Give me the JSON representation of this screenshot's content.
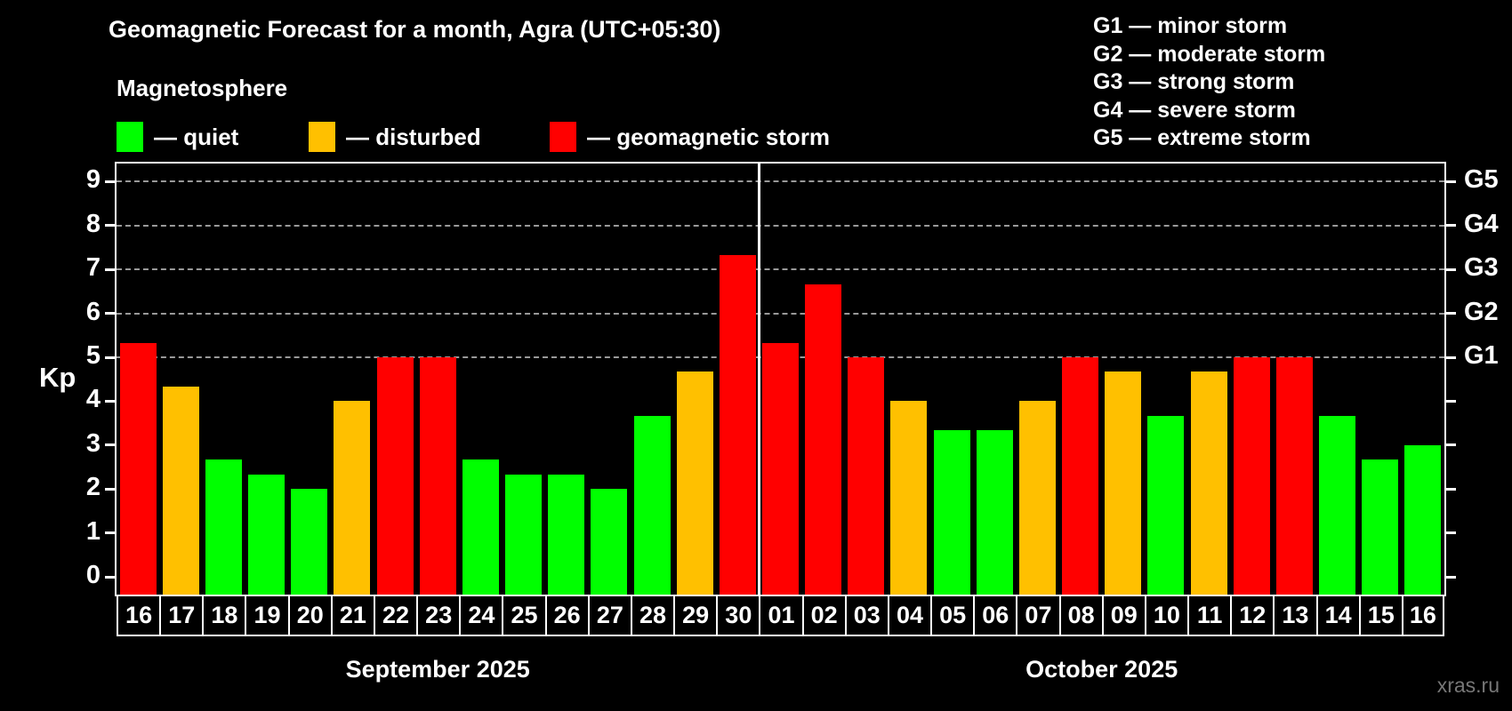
{
  "header": {
    "subtitle": "Magnetosphere"
  },
  "condition_legend": {
    "quiet": {
      "swatch_color": "#00ff00",
      "label": "— quiet"
    },
    "disturbed": {
      "swatch_color": "#ffc000",
      "label": "— disturbed"
    },
    "storm": {
      "swatch_color": "#ff0000",
      "label": "— geomagnetic storm"
    }
  },
  "storm_levels": [
    "G1 — minor storm",
    "G2 — moderate storm",
    "G3 — strong storm",
    "G4 — severe storm",
    "G5 — extreme storm"
  ],
  "watermark": "xras.ru",
  "chart_data": {
    "type": "bar",
    "title": "Geomagnetic Forecast for a month, Agra (UTC+05:30)",
    "ylabel": "Kp",
    "ylim": [
      0,
      9
    ],
    "y_ticks": [
      0,
      1,
      2,
      3,
      4,
      5,
      6,
      7,
      8,
      9
    ],
    "gridline_kp": [
      5,
      6,
      7,
      8,
      9
    ],
    "right_axis_labels": [
      {
        "kp": 5,
        "label": "G1"
      },
      {
        "kp": 6,
        "label": "G2"
      },
      {
        "kp": 7,
        "label": "G3"
      },
      {
        "kp": 8,
        "label": "G4"
      },
      {
        "kp": 9,
        "label": "G5"
      }
    ],
    "legend_position": "top-left",
    "months": [
      {
        "label": "September 2025",
        "days": 15
      },
      {
        "label": "October 2025",
        "days": 16
      }
    ],
    "categories": [
      "16",
      "17",
      "18",
      "19",
      "20",
      "21",
      "22",
      "23",
      "24",
      "25",
      "26",
      "27",
      "28",
      "29",
      "30",
      "01",
      "02",
      "03",
      "04",
      "05",
      "06",
      "07",
      "08",
      "09",
      "10",
      "11",
      "12",
      "13",
      "14",
      "15",
      "16"
    ],
    "values": [
      5.33,
      4.33,
      2.67,
      2.33,
      2,
      4,
      5,
      5,
      2.67,
      2.33,
      2.33,
      2,
      3.67,
      4.67,
      7.33,
      5.33,
      6.67,
      5,
      4,
      3.33,
      3.33,
      4,
      5,
      4.67,
      3.67,
      4.67,
      5,
      5,
      3.67,
      2.67,
      3
    ],
    "conditions": [
      "storm",
      "disturbed",
      "quiet",
      "quiet",
      "quiet",
      "disturbed",
      "storm",
      "storm",
      "quiet",
      "quiet",
      "quiet",
      "quiet",
      "quiet",
      "disturbed",
      "storm",
      "storm",
      "storm",
      "storm",
      "disturbed",
      "quiet",
      "quiet",
      "disturbed",
      "storm",
      "disturbed",
      "quiet",
      "disturbed",
      "storm",
      "storm",
      "quiet",
      "quiet",
      "quiet"
    ]
  }
}
